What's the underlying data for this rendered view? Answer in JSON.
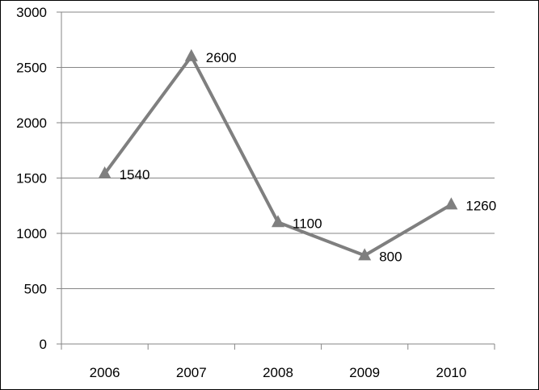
{
  "chart_data": {
    "type": "line",
    "title": "",
    "xlabel": "",
    "ylabel": "",
    "categories": [
      "2006",
      "2007",
      "2008",
      "2009",
      "2010"
    ],
    "series": [
      {
        "values": [
          1540,
          2600,
          1100,
          800,
          1260
        ]
      }
    ],
    "data_labels": [
      "1540",
      "2600",
      "1100",
      "800",
      "1260"
    ],
    "ylim": [
      0,
      3000
    ],
    "yticks": [
      0,
      500,
      1000,
      1500,
      2000,
      2500,
      3000
    ],
    "ytick_labels": [
      "0",
      "500",
      "1000",
      "1500",
      "2000",
      "2500",
      "3000"
    ],
    "grid": true,
    "legend": "none",
    "marker": "triangle",
    "colors": {
      "line": "#7f7f7f",
      "marker": "#7f7f7f",
      "grid": "#868686",
      "axis": "#868686"
    }
  }
}
